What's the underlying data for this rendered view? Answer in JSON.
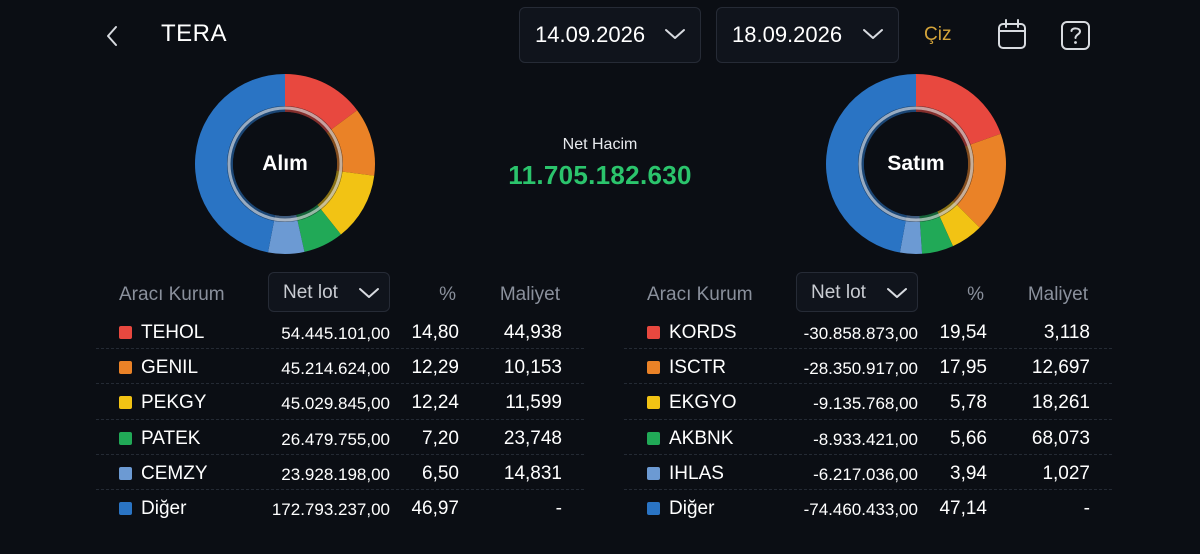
{
  "header": {
    "title": "TERA",
    "start_date": "14.09.2026",
    "end_date": "18.09.2026",
    "draw_label": "Çiz"
  },
  "summary": {
    "net_volume_label": "Net Hacim",
    "net_volume_value": "11.705.182.630",
    "positive_color": "#2bc46c"
  },
  "buy": {
    "label": "Alım",
    "col_broker": "Aracı Kurum",
    "col_lot": "Net lot",
    "col_pct": "%",
    "col_cost": "Maliyet",
    "rows": [
      {
        "name": "TEHOL",
        "lot": "54.445.101,00",
        "pct": "14,80",
        "cost": "44,938",
        "pct_value": 14.8,
        "color": "#e8483f"
      },
      {
        "name": "GENIL",
        "lot": "45.214.624,00",
        "pct": "12,29",
        "cost": "10,153",
        "pct_value": 12.29,
        "color": "#ea8227"
      },
      {
        "name": "PEKGY",
        "lot": "45.029.845,00",
        "pct": "12,24",
        "cost": "11,599",
        "pct_value": 12.24,
        "color": "#f2c314"
      },
      {
        "name": "PATEK",
        "lot": "26.479.755,00",
        "pct": "7,20",
        "cost": "23,748",
        "pct_value": 7.2,
        "color": "#21a957"
      },
      {
        "name": "CEMZY",
        "lot": "23.928.198,00",
        "pct": "6,50",
        "cost": "14,831",
        "pct_value": 6.5,
        "color": "#6c9ad3"
      },
      {
        "name": "Diğer",
        "lot": "172.793.237,00",
        "pct": "46,97",
        "cost": "-",
        "pct_value": 46.97,
        "color": "#2a74c4"
      }
    ]
  },
  "sell": {
    "label": "Satım",
    "col_broker": "Aracı Kurum",
    "col_lot": "Net lot",
    "col_pct": "%",
    "col_cost": "Maliyet",
    "rows": [
      {
        "name": "KORDS",
        "lot": "-30.858.873,00",
        "pct": "19,54",
        "cost": "3,118",
        "pct_value": 19.54,
        "color": "#e8483f"
      },
      {
        "name": "ISCTR",
        "lot": "-28.350.917,00",
        "pct": "17,95",
        "cost": "12,697",
        "pct_value": 17.95,
        "color": "#ea8227"
      },
      {
        "name": "EKGYO",
        "lot": "-9.135.768,00",
        "pct": "5,78",
        "cost": "18,261",
        "pct_value": 5.78,
        "color": "#f2c314"
      },
      {
        "name": "AKBNK",
        "lot": "-8.933.421,00",
        "pct": "5,66",
        "cost": "68,073",
        "pct_value": 5.66,
        "color": "#21a957"
      },
      {
        "name": "IHLAS",
        "lot": "-6.217.036,00",
        "pct": "3,94",
        "cost": "1,027",
        "pct_value": 3.94,
        "color": "#6c9ad3"
      },
      {
        "name": "Diğer",
        "lot": "-74.460.433,00",
        "pct": "47,14",
        "cost": "-",
        "pct_value": 47.14,
        "color": "#2a74c4"
      }
    ]
  },
  "icons": {
    "back": "chevron-left-icon",
    "dropdown": "chevron-down-icon",
    "calendar": "calendar-icon",
    "help": "help-icon"
  }
}
